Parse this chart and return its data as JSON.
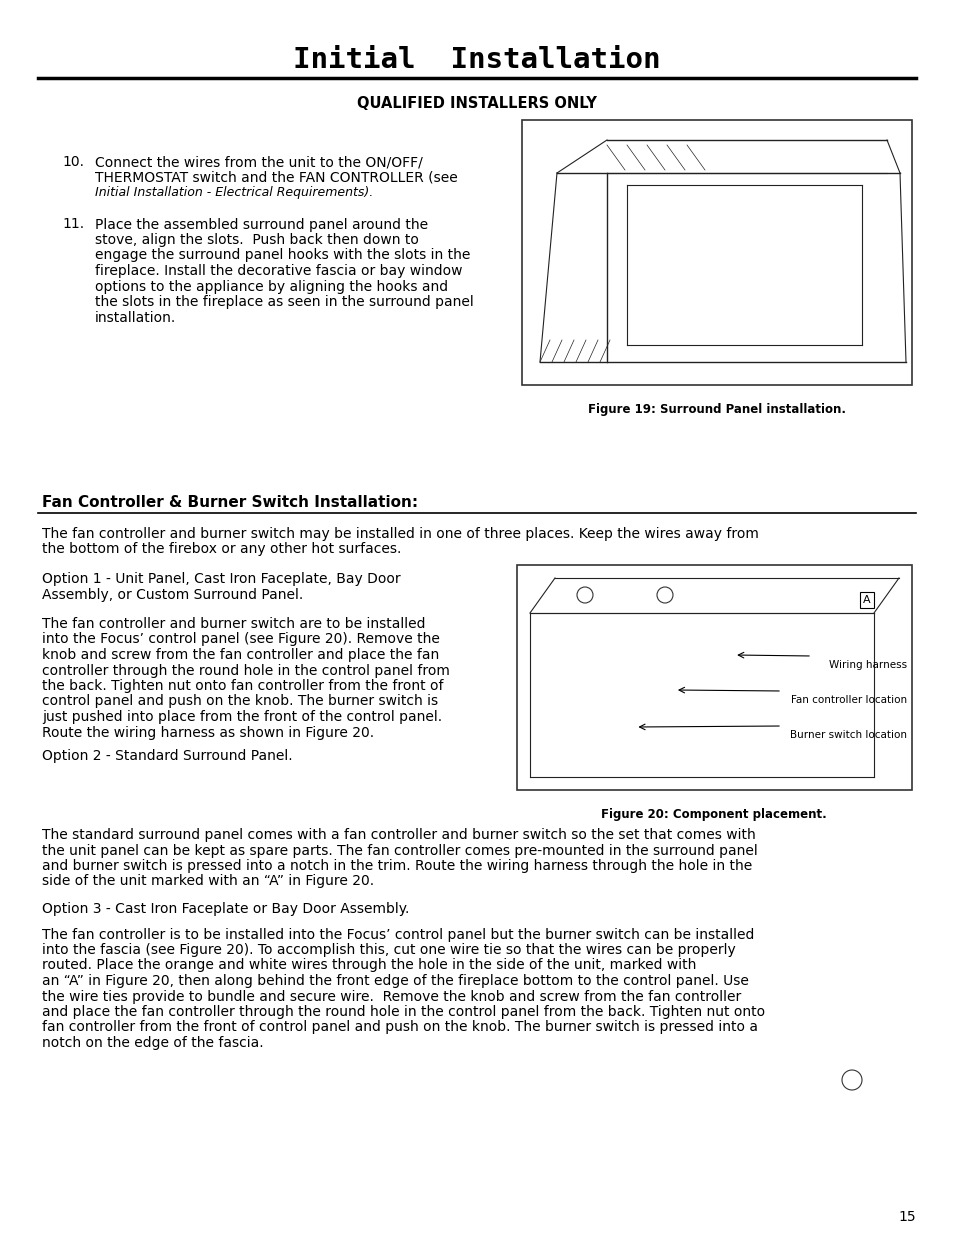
{
  "page_bg": "#ffffff",
  "page_number": "15",
  "title": "Initial  Installation",
  "subtitle": "QUALIFIED INSTALLERS ONLY",
  "section_heading_part1": "Fan C",
  "section_heading": "Fan Controller & Burner Switch Installation:",
  "figure19_caption": "Figure 19: Surround Panel installation.",
  "figure20_caption": "Figure 20: Component placement.",
  "item10_lines": [
    "Connect the wires from the unit to the ON/OFF/",
    "THERMOSTAT switch and the FAN CONTROLLER (see",
    "Initial Installation - Electrical Requirements)."
  ],
  "item11_lines": [
    "Place the assembled surround panel around the",
    "stove, align the slots.  Push back then down to",
    "engage the surround panel hooks with the slots in the",
    "fireplace. Install the decorative fascia or bay window",
    "options to the appliance by aligning the hooks and",
    "the slots in the fireplace as seen in the surround panel",
    "installation."
  ],
  "para1_lines": [
    "The fan controller and burner switch may be installed in one of three places. Keep the wires away from",
    "the bottom of the firebox or any other hot surfaces."
  ],
  "para_option1_lines": [
    "Option 1 - Unit Panel, Cast Iron Faceplate, Bay Door",
    "Assembly, or Custom Surround Panel."
  ],
  "para2_lines": [
    "The fan controller and burner switch are to be installed",
    "into the Focus’ control panel (see Figure 20). Remove the",
    "knob and screw from the fan controller and place the fan",
    "controller through the round hole in the control panel from",
    "the back. Tighten nut onto fan controller from the front of",
    "control panel and push on the knob. The burner switch is",
    "just pushed into place from the front of the control panel.",
    "Route the wiring harness as shown in Figure 20."
  ],
  "para_option2": "Option 2 - Standard Surround Panel.",
  "para3_lines": [
    "The standard surround panel comes with a fan controller and burner switch so the set that comes with",
    "the unit panel can be kept as spare parts. The fan controller comes pre-mounted in the surround panel",
    "and burner switch is pressed into a notch in the trim. Route the wiring harness through the hole in the",
    "side of the unit marked with an “A” in Figure 20."
  ],
  "para_option3": "Option 3 - Cast Iron Faceplate or Bay Door Assembly.",
  "para4_lines": [
    "The fan controller is to be installed into the Focus’ control panel but the burner switch can be installed",
    "into the fascia (see Figure 20). To accomplish this, cut one wire tie so that the wires can be properly",
    "routed. Place the orange and white wires through the hole in the side of the unit, marked with",
    "an “A” in Figure 20, then along behind the front edge of the fireplace bottom to the control panel. Use",
    "the wire ties provide to bundle and secure wire.  Remove the knob and screw from the fan controller",
    "and place the fan controller through the round hole in the control panel from the back. Tighten nut onto",
    "fan controller from the front of control panel and push on the knob. The burner switch is pressed into a",
    "notch on the edge of the fascia."
  ]
}
